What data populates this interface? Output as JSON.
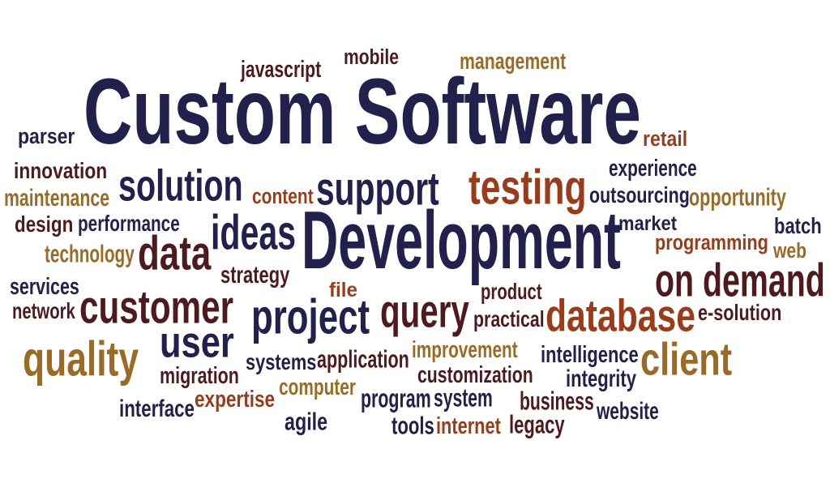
{
  "colors": {
    "navy": "#22204c",
    "maroon": "#4f1a1d",
    "rust": "#9a3c1a",
    "gold": "#9b6b26"
  },
  "words": [
    {
      "text": "javascript",
      "color": "#4f1a1d"
    },
    {
      "text": "mobile",
      "color": "#4f1a1d"
    },
    {
      "text": "management",
      "color": "#9b6b26"
    },
    {
      "text": "Custom Software",
      "color": "#22204c"
    },
    {
      "text": "parser",
      "color": "#22204c"
    },
    {
      "text": "retail",
      "color": "#9a3c1a"
    },
    {
      "text": "innovation",
      "color": "#4f1a1d"
    },
    {
      "text": "solution",
      "color": "#22204c"
    },
    {
      "text": "support",
      "color": "#22204c"
    },
    {
      "text": "testing",
      "color": "#9a3c1a"
    },
    {
      "text": "experience",
      "color": "#22204c"
    },
    {
      "text": "maintenance",
      "color": "#9b6b26"
    },
    {
      "text": "content",
      "color": "#9a3c1a"
    },
    {
      "text": "outsourcing",
      "color": "#22204c"
    },
    {
      "text": "opportunity",
      "color": "#9b6b26"
    },
    {
      "text": "design",
      "color": "#4f1a1d"
    },
    {
      "text": "performance",
      "color": "#22204c"
    },
    {
      "text": "ideas",
      "color": "#22204c"
    },
    {
      "text": "Development",
      "color": "#22204c"
    },
    {
      "text": "market",
      "color": "#22204c"
    },
    {
      "text": "batch",
      "color": "#22204c"
    },
    {
      "text": "technology",
      "color": "#9b6b26"
    },
    {
      "text": "data",
      "color": "#4f1a1d"
    },
    {
      "text": "programming",
      "color": "#9a3c1a"
    },
    {
      "text": "web",
      "color": "#9b6b26"
    },
    {
      "text": "strategy",
      "color": "#4f1a1d"
    },
    {
      "text": "on demand",
      "color": "#4f1a1d"
    },
    {
      "text": "services",
      "color": "#22204c"
    },
    {
      "text": "file",
      "color": "#9a3c1a"
    },
    {
      "text": "product",
      "color": "#4f1a1d"
    },
    {
      "text": "network",
      "color": "#4f1a1d"
    },
    {
      "text": "customer",
      "color": "#4f1a1d"
    },
    {
      "text": "query",
      "color": "#4f1a1d"
    },
    {
      "text": "project",
      "color": "#22204c"
    },
    {
      "text": "database",
      "color": "#9a3c1a"
    },
    {
      "text": "e-solution",
      "color": "#4f1a1d"
    },
    {
      "text": "practical",
      "color": "#4f1a1d"
    },
    {
      "text": "user",
      "color": "#22204c"
    },
    {
      "text": "quality",
      "color": "#9b6b26"
    },
    {
      "text": "improvement",
      "color": "#9b6b26"
    },
    {
      "text": "intelligence",
      "color": "#22204c"
    },
    {
      "text": "client",
      "color": "#9b6b26"
    },
    {
      "text": "systems",
      "color": "#22204c"
    },
    {
      "text": "application",
      "color": "#4f1a1d"
    },
    {
      "text": "migration",
      "color": "#4f1a1d"
    },
    {
      "text": "customization",
      "color": "#4f1a1d"
    },
    {
      "text": "integrity",
      "color": "#22204c"
    },
    {
      "text": "expertise",
      "color": "#9a3c1a"
    },
    {
      "text": "computer",
      "color": "#9b6b26"
    },
    {
      "text": "interface",
      "color": "#22204c"
    },
    {
      "text": "program",
      "color": "#22204c"
    },
    {
      "text": "system",
      "color": "#22204c"
    },
    {
      "text": "business",
      "color": "#4f1a1d"
    },
    {
      "text": "website",
      "color": "#22204c"
    },
    {
      "text": "agile",
      "color": "#22204c"
    },
    {
      "text": "tools",
      "color": "#22204c"
    },
    {
      "text": "internet",
      "color": "#9a3c1a"
    },
    {
      "text": "legacy",
      "color": "#4f1a1d"
    }
  ]
}
